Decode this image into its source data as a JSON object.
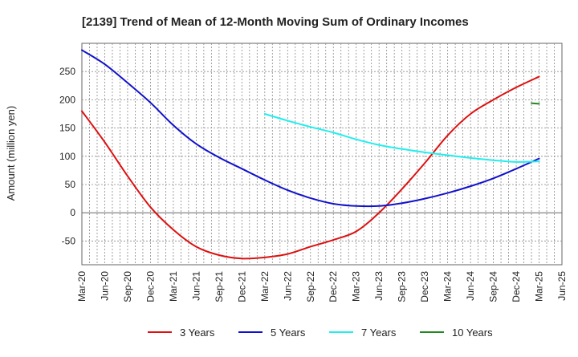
{
  "chart_data": {
    "type": "line",
    "title": "[2139]  Trend of Mean of 12-Month Moving Sum of Ordinary Incomes",
    "xlabel": "",
    "ylabel": "Amount (million yen)",
    "grid": true,
    "legend_position": "bottom",
    "ylim": [
      -92,
      300
    ],
    "y_ticks": [
      -50,
      0,
      50,
      100,
      150,
      200,
      250
    ],
    "x_ticks": [
      "Mar-20",
      "Jun-20",
      "Sep-20",
      "Dec-20",
      "Mar-21",
      "Jun-21",
      "Sep-21",
      "Dec-21",
      "Mar-22",
      "Jun-22",
      "Sep-22",
      "Dec-22",
      "Mar-23",
      "Jun-23",
      "Sep-23",
      "Dec-23",
      "Mar-24",
      "Jun-24",
      "Sep-24",
      "Dec-24",
      "Mar-25",
      "Jun-25"
    ],
    "series": [
      {
        "name": "3 Years",
        "color": "#dd1111",
        "points": [
          [
            "Mar-20",
            180
          ],
          [
            "Jun-20",
            125
          ],
          [
            "Sep-20",
            65
          ],
          [
            "Dec-20",
            10
          ],
          [
            "Mar-21",
            -30
          ],
          [
            "Jun-21",
            -60
          ],
          [
            "Sep-21",
            -75
          ],
          [
            "Dec-21",
            -81
          ],
          [
            "Mar-22",
            -79
          ],
          [
            "Jun-22",
            -73
          ],
          [
            "Sep-22",
            -60
          ],
          [
            "Dec-22",
            -48
          ],
          [
            "Mar-23",
            -33
          ],
          [
            "Jun-23",
            0
          ],
          [
            "Sep-23",
            42
          ],
          [
            "Dec-23",
            88
          ],
          [
            "Mar-24",
            137
          ],
          [
            "Jun-24",
            175
          ],
          [
            "Sep-24",
            200
          ],
          [
            "Dec-24",
            222
          ],
          [
            "Mar-25",
            241
          ]
        ]
      },
      {
        "name": "5 Years",
        "color": "#1111cc",
        "points": [
          [
            "Mar-20",
            288
          ],
          [
            "Jun-20",
            263
          ],
          [
            "Sep-20",
            230
          ],
          [
            "Dec-20",
            195
          ],
          [
            "Mar-21",
            155
          ],
          [
            "Jun-21",
            122
          ],
          [
            "Sep-21",
            98
          ],
          [
            "Dec-21",
            78
          ],
          [
            "Mar-22",
            58
          ],
          [
            "Jun-22",
            40
          ],
          [
            "Sep-22",
            26
          ],
          [
            "Dec-22",
            16
          ],
          [
            "Mar-23",
            12
          ],
          [
            "Jun-23",
            12
          ],
          [
            "Sep-23",
            17
          ],
          [
            "Dec-23",
            25
          ],
          [
            "Mar-24",
            35
          ],
          [
            "Jun-24",
            47
          ],
          [
            "Sep-24",
            61
          ],
          [
            "Dec-24",
            78
          ],
          [
            "Mar-25",
            96
          ]
        ]
      },
      {
        "name": "7 Years",
        "color": "#22eeee",
        "points": [
          [
            "Mar-22",
            175
          ],
          [
            "Jun-22",
            163
          ],
          [
            "Sep-22",
            152
          ],
          [
            "Dec-22",
            142
          ],
          [
            "Mar-23",
            130
          ],
          [
            "Jun-23",
            120
          ],
          [
            "Sep-23",
            113
          ],
          [
            "Dec-23",
            107
          ],
          [
            "Mar-24",
            102
          ],
          [
            "Jun-24",
            97
          ],
          [
            "Sep-24",
            93
          ],
          [
            "Dec-24",
            90
          ],
          [
            "Mar-25",
            91
          ]
        ]
      },
      {
        "name": "10 Years",
        "color": "#228822",
        "points": [
          [
            "Feb-25",
            194
          ],
          [
            "Mar-25",
            193
          ]
        ]
      }
    ]
  }
}
